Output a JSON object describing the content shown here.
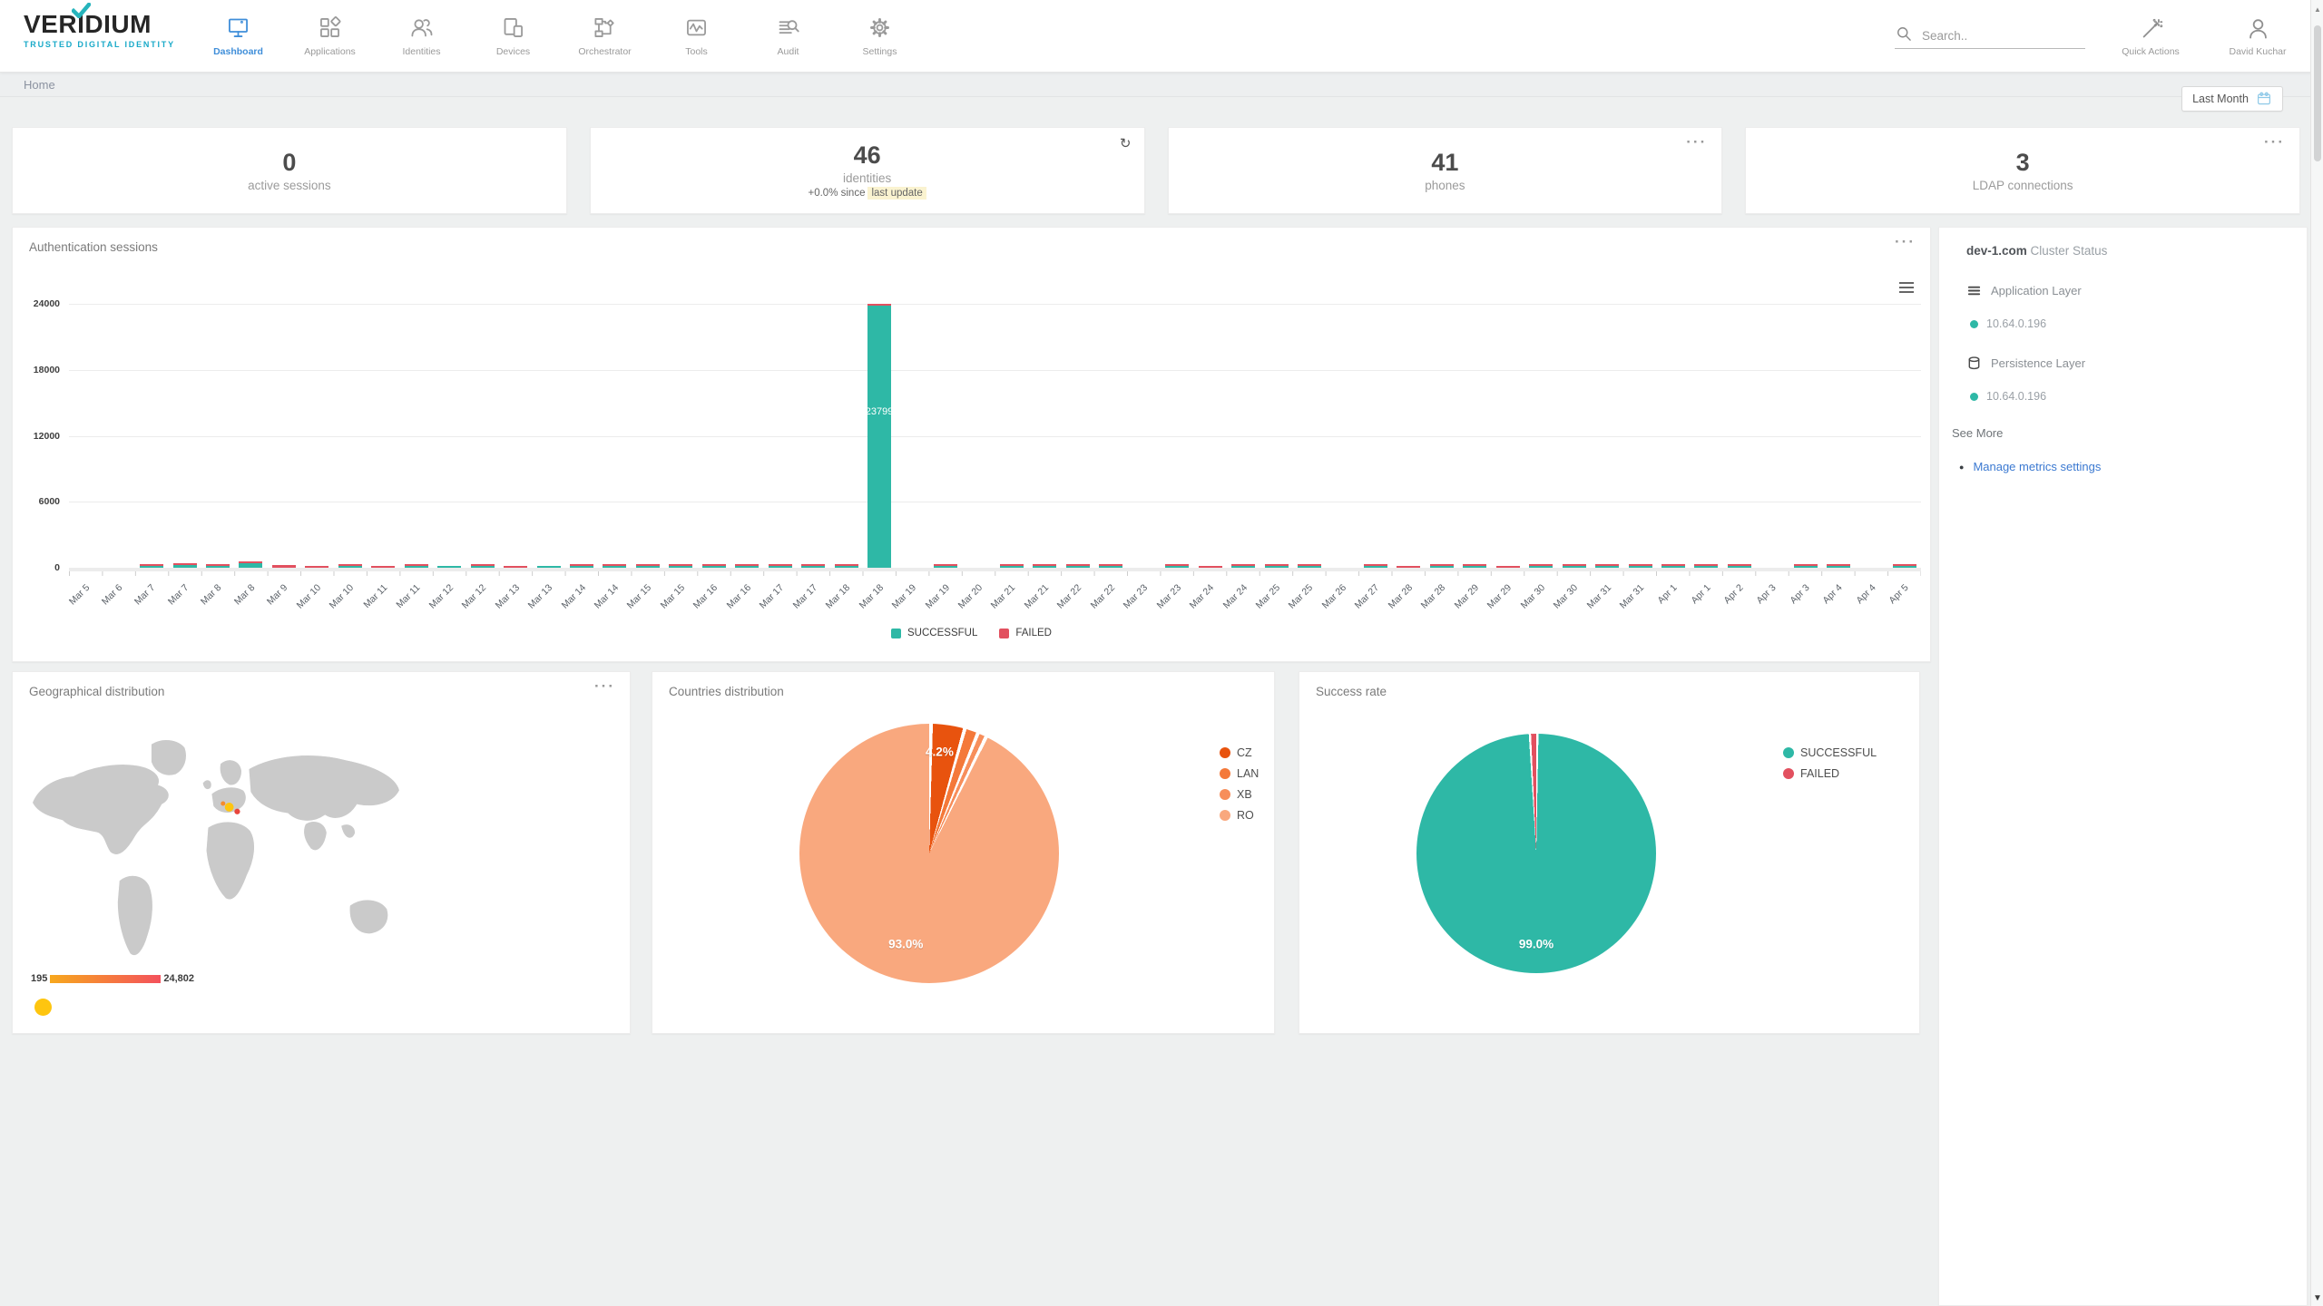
{
  "brand": {
    "name": "VERIDIUM",
    "tagline": "TRUSTED DIGITAL IDENTITY"
  },
  "topbar": {
    "search_placeholder": "Search..",
    "quick_actions_label": "Quick Actions",
    "user_name": "David Kuchar"
  },
  "nav": {
    "items": [
      {
        "label": "Dashboard",
        "active": true
      },
      {
        "label": "Applications",
        "active": false
      },
      {
        "label": "Identities",
        "active": false
      },
      {
        "label": "Devices",
        "active": false
      },
      {
        "label": "Orchestrator",
        "active": false
      },
      {
        "label": "Tools",
        "active": false
      },
      {
        "label": "Audit",
        "active": false
      },
      {
        "label": "Settings",
        "active": false
      }
    ]
  },
  "breadcrumb": {
    "current": "Home"
  },
  "period_selector": {
    "label": "Last Month"
  },
  "stat_cards": {
    "active_sessions": {
      "value": "0",
      "label": "active sessions"
    },
    "identities": {
      "value": "46",
      "label": "identities",
      "delta_prefix": "+0.0% since",
      "delta_highlight": "last update"
    },
    "phones": {
      "value": "41",
      "label": "phones"
    },
    "ldap": {
      "value": "3",
      "label": "LDAP connections"
    }
  },
  "panels": {
    "auth_sessions": {
      "title": "Authentication sessions"
    },
    "geo": {
      "title": "Geographical distribution",
      "scale_min": "195",
      "scale_max": "24,802"
    },
    "countries": {
      "title": "Countries distribution"
    },
    "success": {
      "title": "Success rate"
    }
  },
  "cluster": {
    "host": "dev-1.com",
    "title": "Cluster Status",
    "app_layer_label": "Application Layer",
    "app_node_ip": "10.64.0.196",
    "persistence_layer_label": "Persistence Layer",
    "persistence_node_ip": "10.64.0.196",
    "see_more": "See More",
    "manage_link": "Manage metrics settings"
  },
  "colors": {
    "accent_blue": "#3f8ed9",
    "teal_success": "#2eb8a6",
    "red_failed": "#e2505f",
    "brand_teal": "#18a9c8",
    "highlight_yellow": "#faf3d0",
    "map_marker_yellow": "#fec50f",
    "scale_gradient": [
      "#f7a81d",
      "#f4515c"
    ]
  },
  "icons": {
    "search": "magnifier",
    "quick_actions": "magic-wand",
    "user": "person-bust",
    "calendar": "calendar",
    "refresh": "↻",
    "panel_menu": "···",
    "chart_menu": "hamburger",
    "application_layer": "layers",
    "persistence_layer": "database",
    "node_status": "dot"
  },
  "chart_data": [
    {
      "id": "auth_sessions",
      "type": "bar",
      "title": "Authentication sessions",
      "stacked": true,
      "ylim": [
        0,
        24000
      ],
      "yticks": [
        0,
        6000,
        12000,
        18000,
        24000
      ],
      "grid": true,
      "legend_position": "bottom",
      "bar_label": {
        "category_index": 24,
        "text": "23799"
      },
      "categories": [
        "Mar 5",
        "Mar 6",
        "Mar 7",
        "Mar 7",
        "Mar 8",
        "Mar 8",
        "Mar 9",
        "Mar 10",
        "Mar 10",
        "Mar 11",
        "Mar 11",
        "Mar 12",
        "Mar 12",
        "Mar 13",
        "Mar 13",
        "Mar 14",
        "Mar 14",
        "Mar 15",
        "Mar 15",
        "Mar 16",
        "Mar 16",
        "Mar 17",
        "Mar 17",
        "Mar 18",
        "Mar 18",
        "Mar 19",
        "Mar 19",
        "Mar 20",
        "Mar 21",
        "Mar 21",
        "Mar 22",
        "Mar 22",
        "Mar 23",
        "Mar 23",
        "Mar 24",
        "Mar 24",
        "Mar 25",
        "Mar 25",
        "Mar 26",
        "Mar 27",
        "Mar 28",
        "Mar 28",
        "Mar 29",
        "Mar 29",
        "Mar 30",
        "Mar 30",
        "Mar 31",
        "Mar 31",
        "Apr 1",
        "Apr 1",
        "Apr 2",
        "Apr 3",
        "Apr 3",
        "Apr 4",
        "Apr 4",
        "Apr 5"
      ],
      "series": [
        {
          "name": "SUCCESSFUL",
          "color": "#2eb8a6",
          "values": [
            0,
            0,
            180,
            220,
            200,
            420,
            0,
            0,
            140,
            0,
            160,
            90,
            110,
            0,
            80,
            140,
            160,
            120,
            100,
            180,
            150,
            110,
            90,
            160,
            23799,
            0,
            130,
            0,
            120,
            170,
            90,
            60,
            0,
            70,
            0,
            110,
            100,
            140,
            0,
            80,
            0,
            150,
            100,
            0,
            90,
            170,
            130,
            90,
            60,
            100,
            70,
            0,
            90,
            130,
            0,
            60
          ]
        },
        {
          "name": "FAILED",
          "color": "#e2505f",
          "values": [
            0,
            0,
            60,
            40,
            80,
            60,
            260,
            120,
            60,
            140,
            80,
            0,
            40,
            130,
            0,
            30,
            40,
            30,
            20,
            40,
            30,
            20,
            20,
            40,
            120,
            0,
            40,
            0,
            30,
            60,
            20,
            10,
            0,
            150,
            180,
            20,
            20,
            50,
            0,
            15,
            140,
            60,
            20,
            110,
            20,
            40,
            80,
            140,
            10,
            20,
            15,
            0,
            20,
            30,
            0,
            10
          ]
        }
      ]
    },
    {
      "id": "countries",
      "type": "pie",
      "title": "Countries distribution",
      "legend_position": "right",
      "gap": 0.45,
      "slices": [
        {
          "label": "CZ",
          "value": 4.2,
          "color": "#e8530e",
          "display": "4.2%",
          "label_pos": [
            54,
            11
          ]
        },
        {
          "label": "LAN",
          "value": 1.7,
          "color": "#f4793a"
        },
        {
          "label": "XB",
          "value": 1.1,
          "color": "#f78e5b"
        },
        {
          "label": "RO",
          "value": 93.0,
          "color": "#f9a87e",
          "display": "93.0%",
          "label_pos": [
            41,
            85
          ]
        }
      ]
    },
    {
      "id": "success_rate",
      "type": "pie",
      "title": "Success rate",
      "legend_position": "right",
      "gap": 0.3,
      "slices": [
        {
          "label": "SUCCESSFUL",
          "value": 99.0,
          "color": "#2eb8a6",
          "display": "99.0%",
          "label_pos": [
            50,
            88
          ]
        },
        {
          "label": "FAILED",
          "value": 1.0,
          "color": "#e2505f"
        }
      ]
    }
  ]
}
